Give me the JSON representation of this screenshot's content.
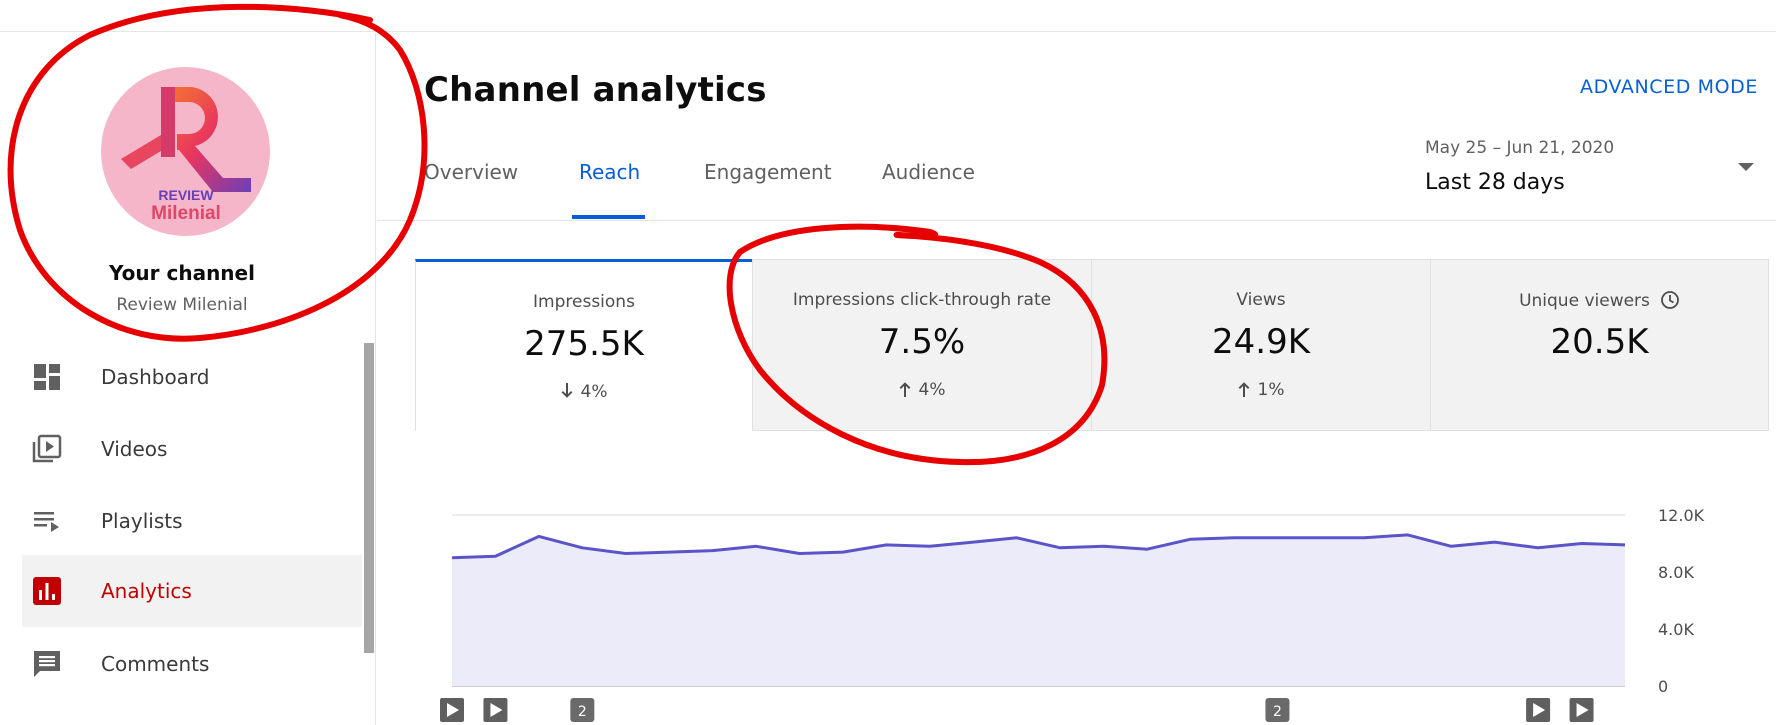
{
  "header": {
    "title": "Channel analytics",
    "advanced_mode": "ADVANCED MODE"
  },
  "sidebar": {
    "avatar_text_top": "REVIEW",
    "avatar_text_bottom": "Milenial",
    "channel_title": "Your channel",
    "channel_name": "Review Milenial",
    "items": [
      {
        "label": "Dashboard",
        "icon": "dashboard-icon",
        "active": false
      },
      {
        "label": "Videos",
        "icon": "videos-icon",
        "active": false
      },
      {
        "label": "Playlists",
        "icon": "playlists-icon",
        "active": false
      },
      {
        "label": "Analytics",
        "icon": "analytics-icon",
        "active": true
      },
      {
        "label": "Comments",
        "icon": "comments-icon",
        "active": false
      }
    ]
  },
  "tabs": [
    {
      "label": "Overview",
      "active": false
    },
    {
      "label": "Reach",
      "active": true
    },
    {
      "label": "Engagement",
      "active": false
    },
    {
      "label": "Audience",
      "active": false
    }
  ],
  "date": {
    "range": "May 25 – Jun 21, 2020",
    "label": "Last 28 days"
  },
  "metrics": [
    {
      "title": "Impressions",
      "value": "275.5K",
      "delta": "4%",
      "direction": "down",
      "active": true
    },
    {
      "title": "Impressions click-through rate",
      "value": "7.5%",
      "delta": "4%",
      "direction": "up",
      "active": false
    },
    {
      "title": "Views",
      "value": "24.9K",
      "delta": "1%",
      "direction": "up",
      "active": false
    },
    {
      "title": "Unique viewers",
      "value": "20.5K",
      "delta": "",
      "direction": "none",
      "active": false,
      "icon": "clock-icon"
    }
  ],
  "colors": {
    "accent": "#065fd4",
    "active_nav": "#c00000",
    "series_line": "#5b54c9",
    "series_fill": "#ecebfa",
    "annotation": "#e60000"
  },
  "chart_data": {
    "type": "area",
    "y_ticks": [
      "12.0K",
      "8.0K",
      "4.0K",
      "0"
    ],
    "ylim": [
      0,
      12000
    ],
    "grid": true,
    "values": [
      9000,
      9100,
      10500,
      9700,
      9300,
      9400,
      9500,
      9800,
      9300,
      9400,
      9900,
      9800,
      10100,
      10400,
      9700,
      9800,
      9600,
      10300,
      10400,
      10400,
      10400,
      10400,
      10600,
      9800,
      10100,
      9700,
      10000,
      9900
    ],
    "markers": [
      {
        "index": 0,
        "kind": "play"
      },
      {
        "index": 1,
        "kind": "play"
      },
      {
        "index": 3,
        "kind": "count",
        "label": "2"
      },
      {
        "index": 19,
        "kind": "count",
        "label": "2"
      },
      {
        "index": 25,
        "kind": "play"
      },
      {
        "index": 26,
        "kind": "play"
      }
    ]
  }
}
